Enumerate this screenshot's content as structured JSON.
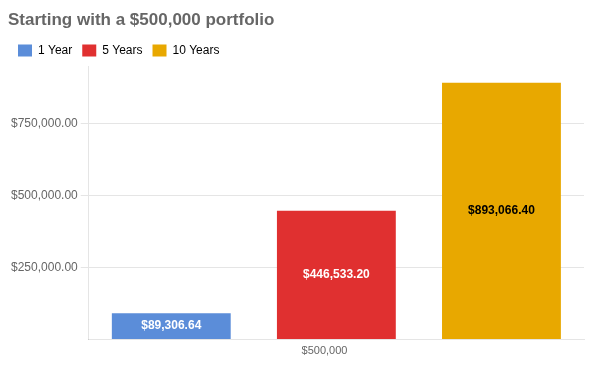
{
  "chart_data": {
    "type": "bar",
    "title": "Starting with a $500,000 portfolio",
    "categories": [
      "1 Year",
      "5 Years",
      "10 Years"
    ],
    "values": [
      89306.64,
      446533.2,
      893066.4
    ],
    "value_labels": [
      "$89,306.64",
      "$446,533.20",
      "$893,066.40"
    ],
    "data_labels": true,
    "colors": [
      "#5B8DD9",
      "#E03030",
      "#E8A800"
    ],
    "ylim": [
      0,
      950000
    ],
    "yticks": [
      {
        "value": 250000,
        "label": "$250,000.00"
      },
      {
        "value": 500000,
        "label": "$500,000.00"
      },
      {
        "value": 750000,
        "label": "$750,000.00"
      }
    ],
    "grid": true,
    "legend": "upper left",
    "tick_labels": "y",
    "annotations": [
      "$500,000"
    ]
  }
}
